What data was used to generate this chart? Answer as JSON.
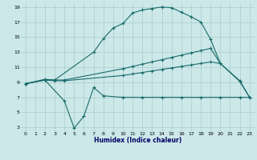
{
  "xlabel": "Humidex (Indice chaleur)",
  "background_color": "#cce8e8",
  "grid_color": "#aacccc",
  "line_color": "#1a6b6b",
  "xlim": [
    -0.5,
    23.5
  ],
  "ylim": [
    2.5,
    19.5
  ],
  "xticks": [
    0,
    1,
    2,
    3,
    4,
    5,
    6,
    7,
    8,
    9,
    10,
    11,
    12,
    13,
    14,
    15,
    16,
    17,
    18,
    19,
    20,
    21,
    22,
    23
  ],
  "yticks": [
    3,
    5,
    7,
    9,
    11,
    13,
    15,
    17,
    19
  ],
  "line1_x": [
    0,
    2,
    3,
    7,
    8,
    9,
    10,
    11,
    12,
    13,
    14,
    15,
    16,
    17,
    18,
    19,
    20
  ],
  "line1_y": [
    8.8,
    9.4,
    9.3,
    13.0,
    14.8,
    16.2,
    16.8,
    18.2,
    18.6,
    18.8,
    19.0,
    18.9,
    18.3,
    17.7,
    17.0,
    14.7,
    11.5
  ],
  "line2_x": [
    0,
    2,
    3,
    4,
    10,
    11,
    12,
    13,
    14,
    15,
    16,
    17,
    18,
    19,
    20,
    22,
    23
  ],
  "line2_y": [
    8.8,
    9.3,
    9.3,
    9.3,
    10.8,
    11.1,
    11.4,
    11.7,
    12.0,
    12.3,
    12.6,
    12.9,
    13.2,
    13.5,
    11.5,
    9.1,
    7.0
  ],
  "line3_x": [
    0,
    2,
    3,
    4,
    10,
    11,
    12,
    13,
    14,
    15,
    16,
    17,
    18,
    19,
    20,
    22,
    23
  ],
  "line3_y": [
    8.8,
    9.3,
    9.2,
    9.2,
    9.9,
    10.1,
    10.3,
    10.5,
    10.7,
    10.9,
    11.1,
    11.3,
    11.5,
    11.7,
    11.5,
    9.2,
    7.0
  ],
  "line4_x": [
    0,
    2,
    4,
    5,
    6,
    7,
    8,
    10,
    12,
    14,
    16,
    18,
    20,
    22,
    23
  ],
  "line4_y": [
    8.8,
    9.3,
    6.5,
    2.9,
    4.5,
    8.3,
    7.2,
    7.0,
    7.0,
    7.0,
    7.0,
    7.0,
    7.0,
    7.0,
    7.0
  ]
}
